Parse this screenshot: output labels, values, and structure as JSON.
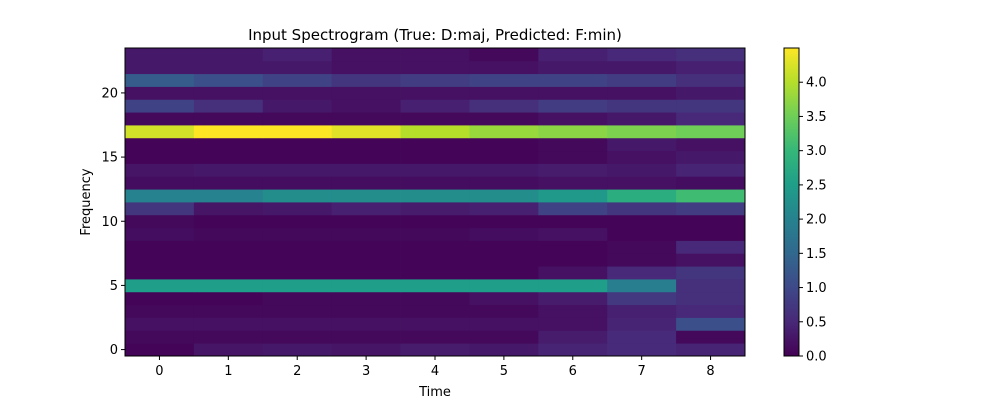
{
  "chart_data": {
    "type": "heatmap",
    "title": "Input Spectrogram (True: D:maj, Predicted: F:min)",
    "xlabel": "Time",
    "ylabel": "Frequency",
    "x_ticks": [
      0,
      1,
      2,
      3,
      4,
      5,
      6,
      7,
      8
    ],
    "y_ticks": [
      0,
      5,
      10,
      15,
      20
    ],
    "xlim": [
      -0.5,
      8.5
    ],
    "ylim": [
      -0.5,
      23.5
    ],
    "colormap": "viridis",
    "color_range": [
      0,
      4.5
    ],
    "colorbar_ticks": [
      0.0,
      0.5,
      1.0,
      1.5,
      2.0,
      2.5,
      3.0,
      3.5,
      4.0
    ],
    "colorbar_tick_labels": [
      "0.0",
      "0.5",
      "1.0",
      "1.5",
      "2.0",
      "2.5",
      "3.0",
      "3.5",
      "4.0"
    ],
    "values": [
      [
        0.05,
        0.25,
        0.3,
        0.25,
        0.35,
        0.3,
        0.45,
        0.55,
        0.45
      ],
      [
        0.1,
        0.1,
        0.1,
        0.1,
        0.1,
        0.1,
        0.35,
        0.55,
        0.1
      ],
      [
        0.2,
        0.2,
        0.2,
        0.2,
        0.2,
        0.2,
        0.2,
        0.45,
        1.1
      ],
      [
        0.1,
        0.1,
        0.1,
        0.1,
        0.1,
        0.1,
        0.2,
        0.4,
        0.5
      ],
      [
        0.05,
        0.05,
        0.1,
        0.1,
        0.1,
        0.2,
        0.35,
        0.75,
        0.6
      ],
      [
        2.5,
        2.5,
        2.5,
        2.5,
        2.5,
        2.5,
        2.5,
        1.9,
        0.6
      ],
      [
        0.05,
        0.05,
        0.05,
        0.05,
        0.05,
        0.05,
        0.2,
        0.5,
        0.7
      ],
      [
        0.05,
        0.05,
        0.05,
        0.05,
        0.05,
        0.05,
        0.05,
        0.1,
        0.2
      ],
      [
        0.05,
        0.05,
        0.05,
        0.05,
        0.05,
        0.05,
        0.05,
        0.1,
        0.5
      ],
      [
        0.15,
        0.1,
        0.1,
        0.1,
        0.1,
        0.15,
        0.2,
        0.05,
        0.05
      ],
      [
        0.1,
        0.05,
        0.05,
        0.05,
        0.05,
        0.05,
        0.05,
        0.05,
        0.05
      ],
      [
        0.7,
        0.25,
        0.3,
        0.4,
        0.35,
        0.4,
        0.9,
        0.7,
        0.8
      ],
      [
        2.0,
        2.0,
        2.2,
        2.2,
        2.2,
        2.2,
        2.4,
        2.8,
        3.1
      ],
      [
        0.15,
        0.15,
        0.15,
        0.15,
        0.15,
        0.15,
        0.2,
        0.2,
        0.15
      ],
      [
        0.25,
        0.3,
        0.3,
        0.3,
        0.3,
        0.3,
        0.35,
        0.3,
        0.45
      ],
      [
        0.05,
        0.05,
        0.05,
        0.05,
        0.05,
        0.05,
        0.1,
        0.2,
        0.3
      ],
      [
        0.05,
        0.05,
        0.05,
        0.05,
        0.05,
        0.05,
        0.1,
        0.3,
        0.2
      ],
      [
        4.2,
        4.5,
        4.5,
        4.3,
        4.0,
        3.8,
        3.7,
        3.6,
        3.5
      ],
      [
        0.1,
        0.1,
        0.1,
        0.1,
        0.1,
        0.1,
        0.2,
        0.3,
        0.5
      ],
      [
        0.9,
        0.6,
        0.3,
        0.2,
        0.4,
        0.6,
        0.8,
        0.7,
        0.7
      ],
      [
        0.2,
        0.2,
        0.2,
        0.2,
        0.2,
        0.2,
        0.2,
        0.2,
        0.3
      ],
      [
        1.3,
        1.1,
        0.9,
        0.7,
        0.8,
        0.9,
        0.9,
        0.8,
        0.6
      ],
      [
        0.3,
        0.3,
        0.3,
        0.2,
        0.2,
        0.2,
        0.3,
        0.3,
        0.4
      ],
      [
        0.3,
        0.3,
        0.4,
        0.2,
        0.2,
        0.1,
        0.4,
        0.5,
        0.6
      ]
    ]
  }
}
